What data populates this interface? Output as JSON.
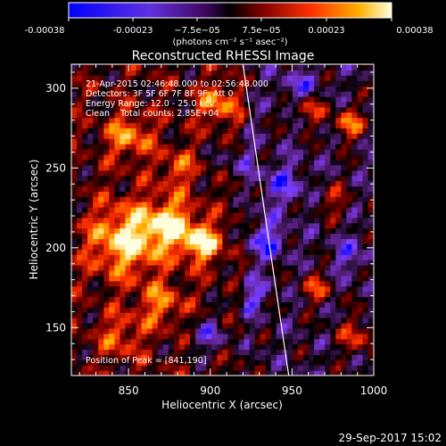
{
  "colorbar": {
    "ticks": [
      "-0.00038",
      "-0.00023",
      "−7.5e−05",
      "7.5e−05",
      "0.00023",
      "0.00038"
    ],
    "unit_label": "(photons cm⁻² s⁻¹ asec⁻²)"
  },
  "chart_data": {
    "type": "heatmap",
    "title": "Reconstructed RHESSI Image",
    "xlabel": "Heliocentric X (arcsec)",
    "ylabel": "Heliocentric Y (arcsec)",
    "xlim": [
      815,
      1000
    ],
    "ylim": [
      120,
      315
    ],
    "x_ticks": [
      850,
      900,
      950,
      1000
    ],
    "y_ticks": [
      150,
      200,
      250,
      300
    ],
    "value_range": [
      -0.00038,
      0.00038
    ],
    "colormap": [
      "#0000ff",
      "#8040ff",
      "#5a2080",
      "#000000",
      "#7a0000",
      "#ff3000",
      "#ffb000",
      "#ffffe0"
    ],
    "annotations": [
      "21-Apr-2015 02:46:48.000 to 02:56:48.000",
      "Detectors: 3F 5F 6F 7F 8F 9F, Att 0",
      "Energy Range: 12.0 - 25.0 keV",
      "Clean    Total counts: 2.85E+04"
    ],
    "peak_label": "Position of Peak = [841,190]",
    "peak": [
      841,
      190
    ],
    "limb_x_at_y": [
      [
        920,
        315
      ],
      [
        935,
        210
      ],
      [
        948,
        120
      ]
    ]
  },
  "footer": {
    "timestamp": "29-Sep-2017 15:02"
  }
}
